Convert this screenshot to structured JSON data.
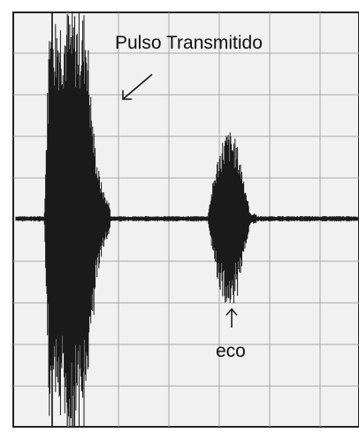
{
  "annotations": {
    "pulse": "Pulso Transmitido",
    "echo": "eco"
  }
}
